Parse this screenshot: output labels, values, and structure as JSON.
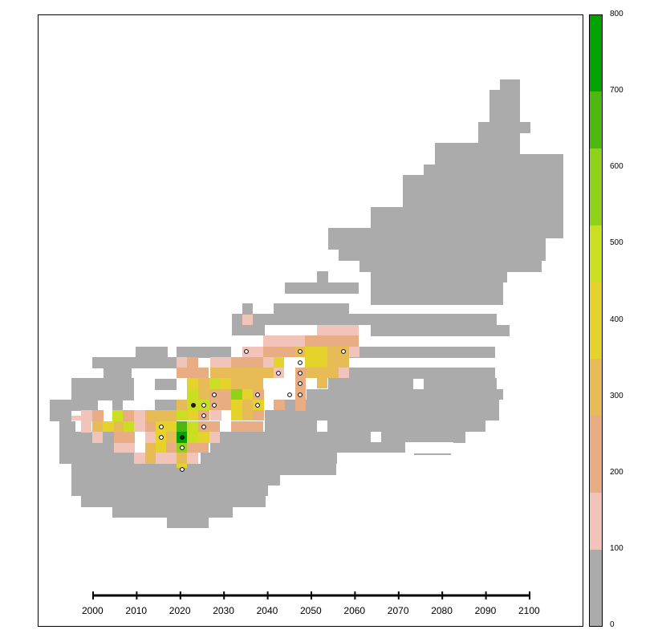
{
  "map": {
    "cells_desc": "grid of cells, value classes 0-7",
    "colors": {
      "background": "#ffffff",
      "gray": "#ababab",
      "c100": "#f2c4b9",
      "c200": "#e8ad82",
      "c300": "#e7bb55",
      "c400": "#e5d22b",
      "c500": "#cbdf22",
      "c600": "#90d11a",
      "c700": "#4eb810",
      "c800": "#00a300"
    }
  },
  "legend": {
    "ticks": [
      "800",
      "700",
      "600",
      "500",
      "400",
      "300",
      "200",
      "100",
      "0"
    ],
    "band_colors": [
      "#ababab",
      "#f2c4b9",
      "#e8ad82",
      "#e7bb55",
      "#e5d22b",
      "#cbdf22",
      "#90d11a",
      "#4eb810",
      "#00a300"
    ]
  },
  "scale_bar": {
    "labels": [
      "2000",
      "2010",
      "2020",
      "2030",
      "2040",
      "2050",
      "2060",
      "2070",
      "2080",
      "2090",
      "2100"
    ]
  }
}
